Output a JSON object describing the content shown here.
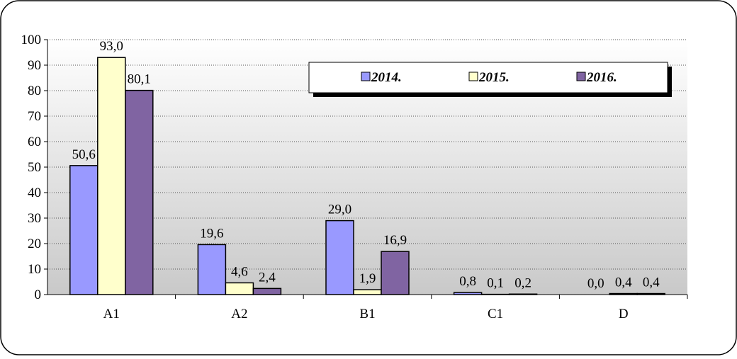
{
  "chart_data": {
    "type": "bar",
    "categories": [
      "A1",
      "A2",
      "B1",
      "C1",
      "D"
    ],
    "series": [
      {
        "name": "2014.",
        "values": [
          50.6,
          19.6,
          29.0,
          0.8,
          0.0
        ],
        "color": "#9999ff"
      },
      {
        "name": "2015.",
        "values": [
          93.0,
          4.6,
          1.9,
          0.1,
          0.4
        ],
        "color": "#ffffcc"
      },
      {
        "name": "2016.",
        "values": [
          80.1,
          2.4,
          16.9,
          0.2,
          0.4
        ],
        "color": "#8064a2"
      }
    ],
    "value_labels": [
      [
        "50,6",
        "19,6",
        "29,0",
        "0,8",
        "0,0"
      ],
      [
        "93,0",
        "4,6",
        "1,9",
        "0,1",
        "0,4"
      ],
      [
        "80,1",
        "2,4",
        "16,9",
        "0,2",
        "0,4"
      ]
    ],
    "y_ticks": [
      "0",
      "10",
      "20",
      "30",
      "40",
      "50",
      "60",
      "70",
      "80",
      "90",
      "100"
    ],
    "ylim": [
      0,
      100
    ],
    "grid": true,
    "legend_position": "top-right",
    "title": "",
    "xlabel": "",
    "ylabel": ""
  }
}
